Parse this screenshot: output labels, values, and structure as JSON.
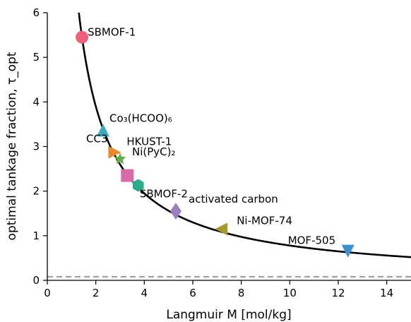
{
  "chart_data": {
    "type": "scatter",
    "xlabel": "Langmuir M [mol/kg]",
    "ylabel": "optimal tankage fraction, τ_opt",
    "xlim": [
      0,
      15
    ],
    "ylim": [
      0,
      6
    ],
    "x_ticks": [
      "0",
      "2",
      "4",
      "6",
      "8",
      "10",
      "12",
      "14"
    ],
    "y_ticks": [
      "0",
      "1",
      "2",
      "3",
      "4",
      "5",
      "6"
    ],
    "grid": false,
    "curve": {
      "color": "#000000",
      "style": "solid"
    },
    "reference_line": {
      "y": 0.08,
      "color": "#9e9e9e",
      "style": "dashed"
    },
    "points": [
      {
        "label": "SBMOF-1",
        "x": 1.43,
        "y": 5.45,
        "marker": "circle",
        "color": "#f0607a"
      },
      {
        "label": "Co₃(HCOO)₆",
        "x": 2.3,
        "y": 3.35,
        "marker": "triangle-up",
        "color": "#3aabbd"
      },
      {
        "label": "CC3",
        "x": 2.3,
        "y": 3.35,
        "marker": "none",
        "color": "#000000"
      },
      {
        "label": "HKUST-1",
        "x": 2.75,
        "y": 2.87,
        "marker": "triangle-right",
        "color": "#e8892d"
      },
      {
        "label": "Ni(PyC)₂",
        "x": 3.0,
        "y": 2.72,
        "marker": "star",
        "color": "#63b04a"
      },
      {
        "label": "",
        "x": 3.3,
        "y": 2.35,
        "marker": "square",
        "color": "#d96aa8"
      },
      {
        "label": "SBMOF-2",
        "x": 3.75,
        "y": 2.13,
        "marker": "hexagon",
        "color": "#2bab8a"
      },
      {
        "label": "activated carbon",
        "x": 5.3,
        "y": 1.55,
        "marker": "diamond",
        "color": "#9d7fbf"
      },
      {
        "label": "Ni-MOF-74",
        "x": 7.2,
        "y": 1.15,
        "marker": "triangle-left",
        "color": "#a39a2f"
      },
      {
        "label": "MOF-505",
        "x": 12.4,
        "y": 0.67,
        "marker": "triangle-down",
        "color": "#3a90cf"
      }
    ]
  }
}
